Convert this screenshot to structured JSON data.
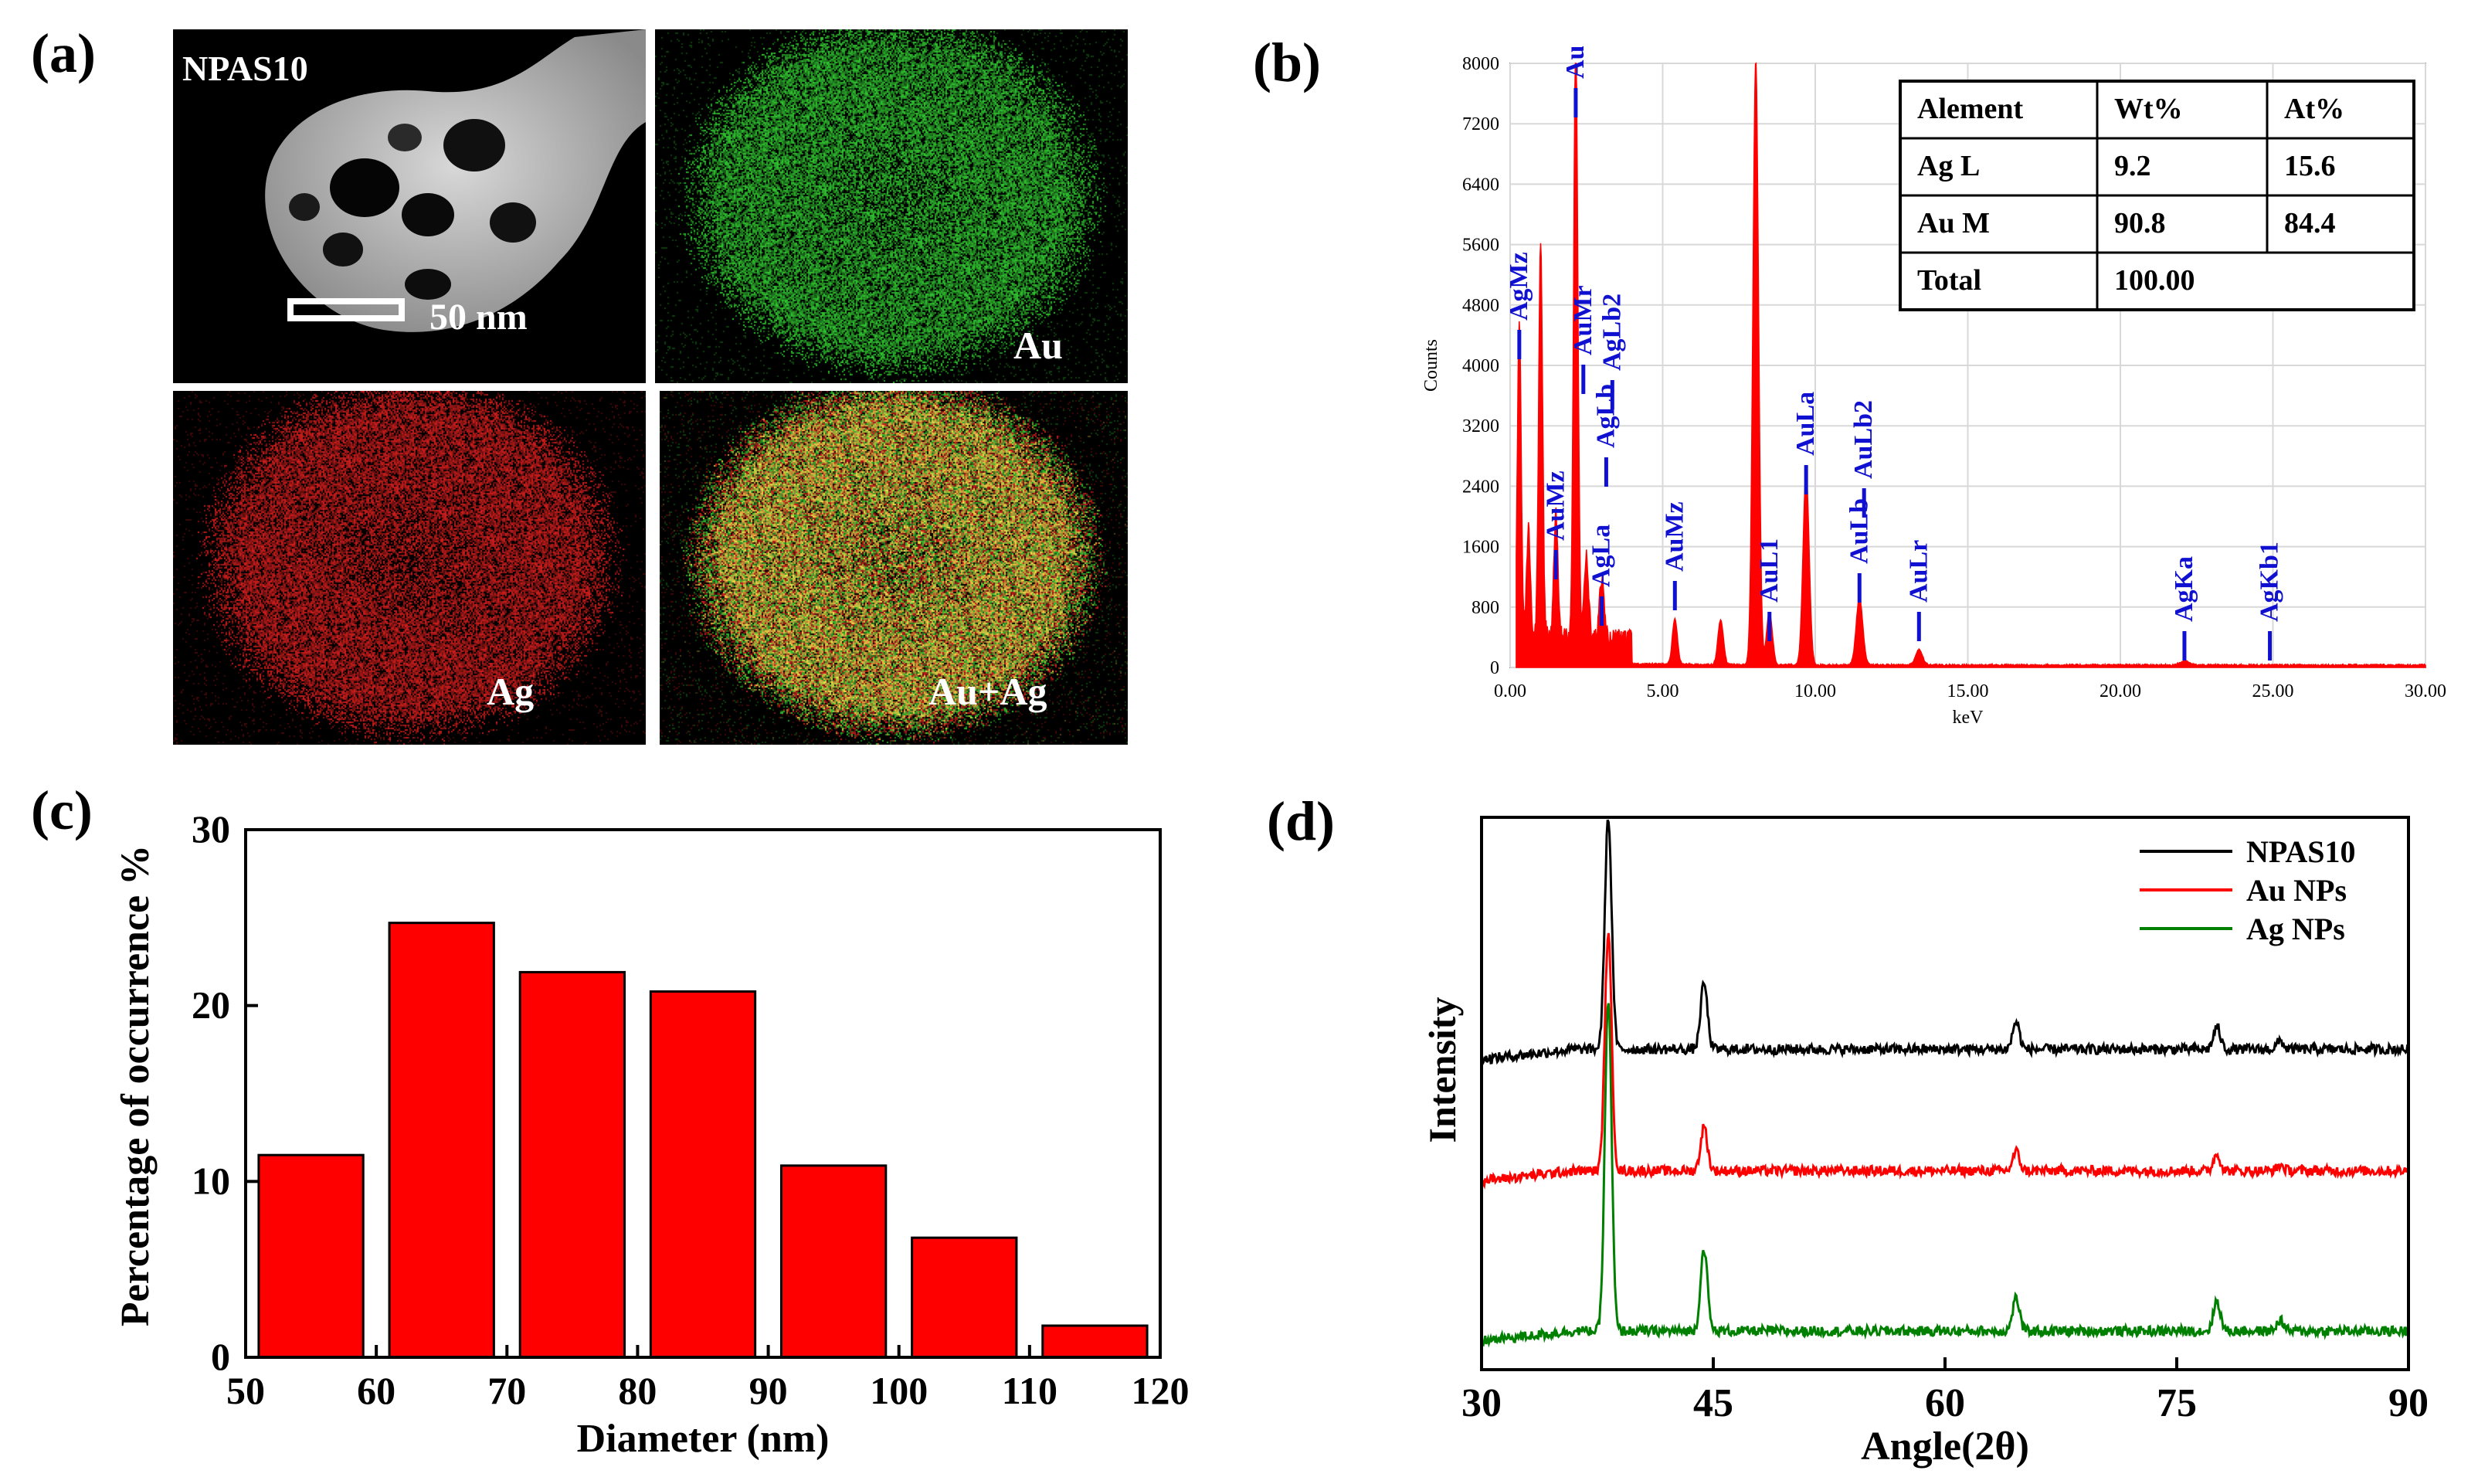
{
  "panels": {
    "a": "(a)",
    "b": "(b)",
    "c": "(c)",
    "d": "(d)"
  },
  "mapping": {
    "sample": "NPAS10",
    "scale": "50 nm",
    "au": "Au",
    "ag": "Ag",
    "combined": "Au+Ag",
    "colors": {
      "au": "#32c832",
      "ag": "#d21e1e"
    }
  },
  "chart_data": [
    {
      "id": "b",
      "type": "line",
      "title": "",
      "xlabel": "keV",
      "ylabel": "Counts",
      "xlim": [
        0,
        30
      ],
      "ylim": [
        0,
        8000
      ],
      "xticks": [
        "0.00",
        "5.00",
        "10.00",
        "15.00",
        "20.00",
        "25.00",
        "30.00"
      ],
      "yticks": [
        "0",
        "800",
        "1600",
        "2400",
        "3200",
        "4000",
        "4800",
        "5600",
        "6400",
        "7200",
        "8000"
      ],
      "series": [
        {
          "name": "EDS spectrum",
          "color": "#ff0000",
          "peaks": [
            {
              "x": 0.3,
              "y": 4200
            },
            {
              "x": 0.6,
              "y": 1400
            },
            {
              "x": 1.0,
              "y": 5200
            },
            {
              "x": 1.5,
              "y": 1700
            },
            {
              "x": 2.15,
              "y": 8000
            },
            {
              "x": 2.5,
              "y": 1100
            },
            {
              "x": 3.0,
              "y": 800
            },
            {
              "x": 5.4,
              "y": 600
            },
            {
              "x": 6.9,
              "y": 600
            },
            {
              "x": 8.05,
              "y": 8000
            },
            {
              "x": 8.5,
              "y": 700
            },
            {
              "x": 9.7,
              "y": 2550
            },
            {
              "x": 11.45,
              "y": 900
            },
            {
              "x": 13.4,
              "y": 200
            },
            {
              "x": 22.1,
              "y": 50
            }
          ]
        }
      ],
      "annotations": [
        {
          "label": "AgMz",
          "x": 0.3
        },
        {
          "label": "AuMb AuMa",
          "x": 2.15
        },
        {
          "label": "AuMz",
          "x": 1.5
        },
        {
          "label": "AuMr",
          "x": 2.4
        },
        {
          "label": "AgLa",
          "x": 3.0
        },
        {
          "label": "AgLb",
          "x": 3.15
        },
        {
          "label": "AgLb2",
          "x": 3.35
        },
        {
          "label": "AuMz",
          "x": 5.4
        },
        {
          "label": "AuL1",
          "x": 8.5
        },
        {
          "label": "AuLa",
          "x": 9.7
        },
        {
          "label": "AuLb",
          "x": 11.45
        },
        {
          "label": "AuLb2",
          "x": 11.6
        },
        {
          "label": "AuLr",
          "x": 13.4
        },
        {
          "label": "AgKa",
          "x": 22.1
        },
        {
          "label": "AgKb1",
          "x": 24.9
        }
      ],
      "table": {
        "headers": [
          "Alement",
          "Wt%",
          "At%"
        ],
        "rows": [
          [
            "Ag L",
            "9.2",
            "15.6"
          ],
          [
            "Au M",
            "90.8",
            "84.4"
          ],
          [
            "Total",
            "100.00",
            ""
          ]
        ]
      }
    },
    {
      "id": "c",
      "type": "bar",
      "title": "",
      "xlabel": "Diameter (nm)",
      "ylabel": "Percentage of occurrence %",
      "xlim": [
        50,
        120
      ],
      "ylim": [
        0,
        30
      ],
      "xticks": [
        50,
        60,
        70,
        80,
        90,
        100,
        110,
        120
      ],
      "yticks": [
        0,
        10,
        20,
        30
      ],
      "bar_color": "#ff0000",
      "bins": [
        [
          51,
          59
        ],
        [
          61,
          69
        ],
        [
          71,
          79
        ],
        [
          81,
          89
        ],
        [
          91,
          99
        ],
        [
          101,
          109
        ],
        [
          111,
          119
        ]
      ],
      "values": [
        11.5,
        24.7,
        21.9,
        20.8,
        10.9,
        6.8,
        1.8
      ]
    },
    {
      "id": "d",
      "type": "line",
      "title": "",
      "xlabel": "Angle(2θ)",
      "ylabel": "Intensity",
      "xlim": [
        30,
        90
      ],
      "xticks": [
        30,
        45,
        60,
        75,
        90
      ],
      "series": [
        {
          "name": "NPAS10",
          "color": "#000000",
          "offset": 0.58,
          "peaks": [
            {
              "x": 38.2,
              "h": 0.42
            },
            {
              "x": 44.4,
              "h": 0.12
            },
            {
              "x": 64.6,
              "h": 0.05
            },
            {
              "x": 77.6,
              "h": 0.04
            },
            {
              "x": 81.7,
              "h": 0.015
            }
          ]
        },
        {
          "name": "Au NPs",
          "color": "#ff0000",
          "offset": 0.36,
          "peaks": [
            {
              "x": 38.2,
              "h": 0.43
            },
            {
              "x": 44.4,
              "h": 0.08
            },
            {
              "x": 64.6,
              "h": 0.035
            },
            {
              "x": 77.6,
              "h": 0.03
            },
            {
              "x": 81.7,
              "h": 0.01
            }
          ]
        },
        {
          "name": "Ag NPs",
          "color": "#008000",
          "offset": 0.07,
          "peaks": [
            {
              "x": 38.2,
              "h": 0.6
            },
            {
              "x": 44.4,
              "h": 0.15
            },
            {
              "x": 64.6,
              "h": 0.06
            },
            {
              "x": 77.6,
              "h": 0.055
            },
            {
              "x": 81.7,
              "h": 0.02
            }
          ]
        }
      ]
    }
  ]
}
